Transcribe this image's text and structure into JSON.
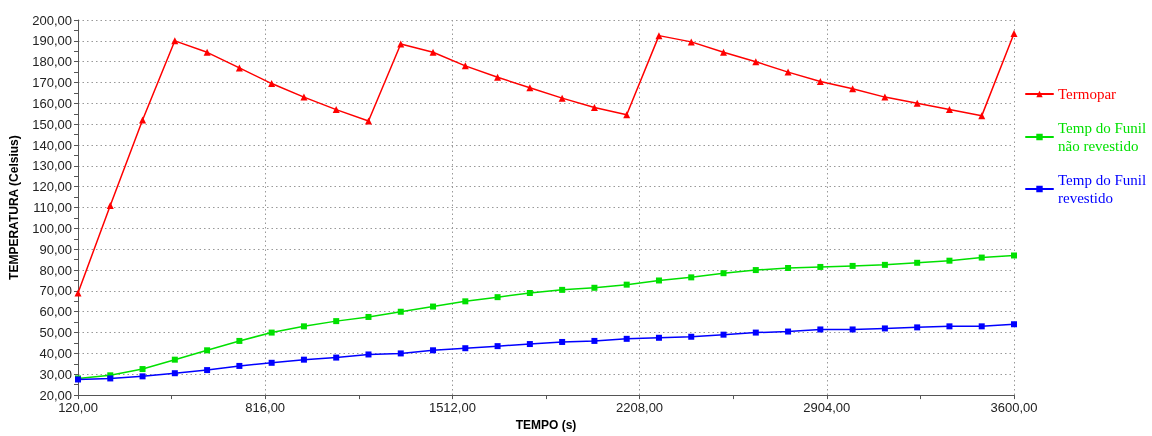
{
  "chart_data": {
    "type": "line",
    "xlabel": "TEMPO (s)",
    "ylabel": "TEMPERATURA (Celsius)",
    "x": [
      120,
      240,
      360,
      480,
      600,
      720,
      840,
      960,
      1080,
      1200,
      1320,
      1440,
      1560,
      1680,
      1800,
      1920,
      2040,
      2160,
      2280,
      2400,
      2520,
      2640,
      2760,
      2880,
      3000,
      3120,
      3240,
      3360,
      3480,
      3600
    ],
    "series": [
      {
        "name": "Termopar",
        "color": "#ff0000",
        "marker": "triangle",
        "values": [
          69,
          111,
          152,
          190,
          184.5,
          177,
          169.5,
          163,
          157,
          151.5,
          188.5,
          184.5,
          178,
          172.5,
          167.5,
          162.5,
          158,
          154.5,
          192.5,
          189.5,
          184.5,
          180,
          175,
          170.5,
          167,
          163,
          160,
          157,
          154,
          193.5
        ]
      },
      {
        "name": "Temp do Funil não revestido",
        "color": "#00e000",
        "marker": "square",
        "values": [
          28,
          29.5,
          32.5,
          37,
          41.5,
          46,
          50,
          53,
          55.5,
          57.5,
          60,
          62.5,
          65,
          67,
          69,
          70.5,
          71.5,
          73,
          75,
          76.5,
          78.5,
          80,
          81,
          81.5,
          82,
          82.5,
          83.5,
          84.5,
          86,
          87
        ]
      },
      {
        "name": "Temp do Funil revestido",
        "color": "#0000ff",
        "marker": "square",
        "values": [
          27.5,
          28,
          29,
          30.5,
          32,
          34,
          35.5,
          37,
          38,
          39.5,
          40,
          41.5,
          42.5,
          43.5,
          44.5,
          45.5,
          46,
          47,
          47.5,
          48,
          49,
          50,
          50.5,
          51.5,
          51.5,
          52,
          52.5,
          53,
          53,
          54
        ]
      }
    ],
    "xlim": [
      120,
      3600
    ],
    "xticks": [
      {
        "value": 120,
        "label": "120,00"
      },
      {
        "value": 468,
        "label": null
      },
      {
        "value": 816,
        "label": "816,00"
      },
      {
        "value": 1164,
        "label": null
      },
      {
        "value": 1512,
        "label": "1512,00"
      },
      {
        "value": 1860,
        "label": null
      },
      {
        "value": 2208,
        "label": "2208,00"
      },
      {
        "value": 2556,
        "label": null
      },
      {
        "value": 2904,
        "label": "2904,00"
      },
      {
        "value": 3252,
        "label": null
      },
      {
        "value": 3600,
        "label": "3600,00"
      }
    ],
    "ylim": [
      20,
      200
    ],
    "yticks": [
      {
        "value": 20,
        "label": "20,00"
      },
      {
        "value": 25,
        "label": null
      },
      {
        "value": 30,
        "label": "30,00"
      },
      {
        "value": 35,
        "label": null
      },
      {
        "value": 40,
        "label": "40,00"
      },
      {
        "value": 45,
        "label": null
      },
      {
        "value": 50,
        "label": "50,00"
      },
      {
        "value": 55,
        "label": null
      },
      {
        "value": 60,
        "label": "60,00"
      },
      {
        "value": 65,
        "label": null
      },
      {
        "value": 70,
        "label": "70,00"
      },
      {
        "value": 75,
        "label": null
      },
      {
        "value": 80,
        "label": "80,00"
      },
      {
        "value": 85,
        "label": null
      },
      {
        "value": 90,
        "label": "90,00"
      },
      {
        "value": 95,
        "label": null
      },
      {
        "value": 100,
        "label": "100,00"
      },
      {
        "value": 105,
        "label": null
      },
      {
        "value": 110,
        "label": "110,00"
      },
      {
        "value": 115,
        "label": null
      },
      {
        "value": 120,
        "label": "120,00"
      },
      {
        "value": 125,
        "label": null
      },
      {
        "value": 130,
        "label": "130,00"
      },
      {
        "value": 135,
        "label": null
      },
      {
        "value": 140,
        "label": "140,00"
      },
      {
        "value": 145,
        "label": null
      },
      {
        "value": 150,
        "label": "150,00"
      },
      {
        "value": 155,
        "label": null
      },
      {
        "value": 160,
        "label": "160,00"
      },
      {
        "value": 165,
        "label": null
      },
      {
        "value": 170,
        "label": "170,00"
      },
      {
        "value": 175,
        "label": null
      },
      {
        "value": 180,
        "label": "180,00"
      },
      {
        "value": 185,
        "label": null
      },
      {
        "value": 190,
        "label": "190,00"
      },
      {
        "value": 195,
        "label": null
      },
      {
        "value": 200,
        "label": "200,00"
      }
    ],
    "grid": true,
    "legend": "right",
    "line_style": "solid"
  }
}
